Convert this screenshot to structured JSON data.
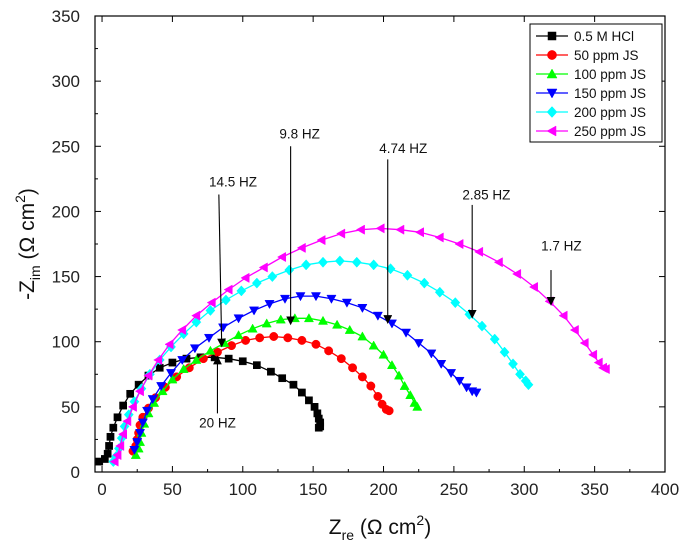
{
  "chart_data": {
    "type": "scatter",
    "title": "",
    "xlabel": "Z",
    "xlabel_sub": "re",
    "xlabel_unit": "(Ω cm",
    "xlabel_sup": "2",
    "xlabel_close": ")",
    "ylabel": "-Z",
    "ylabel_sub": "im",
    "ylabel_unit": "(Ω cm",
    "ylabel_sup": "2",
    "ylabel_close": ")",
    "xlim": [
      -5,
      400
    ],
    "ylim": [
      0,
      350
    ],
    "xticks": [
      0,
      50,
      100,
      150,
      200,
      250,
      300,
      350,
      400
    ],
    "yticks": [
      0,
      50,
      100,
      150,
      200,
      250,
      300,
      350
    ],
    "grid": false,
    "legend_position": "top-right",
    "series": [
      {
        "name": "0.5 M HCl",
        "color": "#000000",
        "marker": "square",
        "x": [
          -2,
          2,
          4,
          5,
          6,
          8,
          11,
          15,
          20,
          26,
          33,
          41,
          50,
          60,
          70,
          80,
          90,
          100,
          110,
          120,
          128,
          136,
          142,
          147,
          151,
          153,
          154,
          155,
          155,
          154
        ],
        "y": [
          8,
          10,
          14,
          20,
          27,
          34,
          42,
          51,
          60,
          67,
          74,
          80,
          84,
          87,
          88,
          88,
          87,
          85,
          82,
          77,
          72,
          67,
          61,
          55,
          50,
          45,
          41,
          38,
          35,
          34
        ]
      },
      {
        "name": "50 ppm JS",
        "color": "#ff0000",
        "marker": "circle",
        "x": [
          22,
          24,
          25,
          26,
          27,
          29,
          33,
          38,
          45,
          53,
          62,
          72,
          82,
          92,
          102,
          112,
          122,
          132,
          142,
          152,
          161,
          170,
          178,
          185,
          191,
          196,
          199,
          202,
          204
        ],
        "y": [
          16,
          20,
          25,
          30,
          36,
          42,
          49,
          57,
          65,
          73,
          80,
          87,
          92,
          97,
          101,
          103,
          104,
          103,
          101,
          98,
          93,
          87,
          80,
          73,
          66,
          58,
          52,
          48,
          47
        ]
      },
      {
        "name": "100 ppm JS",
        "color": "#00ff00",
        "marker": "triangle-up",
        "x": [
          24,
          26,
          27,
          28,
          30,
          33,
          37,
          43,
          50,
          58,
          67,
          77,
          87,
          97,
          107,
          117,
          127,
          137,
          147,
          157,
          167,
          176,
          185,
          193,
          200,
          206,
          211,
          215,
          219,
          222,
          224
        ],
        "y": [
          13,
          18,
          23,
          30,
          37,
          45,
          53,
          62,
          71,
          79,
          86,
          93,
          99,
          105,
          110,
          114,
          117,
          118,
          118,
          116,
          113,
          109,
          104,
          97,
          90,
          82,
          74,
          66,
          59,
          53,
          50
        ]
      },
      {
        "name": "150 ppm JS",
        "color": "#0000ff",
        "marker": "triangle-down",
        "x": [
          23,
          25,
          27,
          29,
          32,
          36,
          42,
          49,
          57,
          66,
          76,
          86,
          97,
          108,
          119,
          130,
          141,
          152,
          163,
          174,
          185,
          196,
          206,
          216,
          225,
          234,
          241,
          248,
          254,
          259,
          263,
          266
        ],
        "y": [
          17,
          23,
          30,
          38,
          47,
          56,
          66,
          76,
          86,
          95,
          103,
          111,
          118,
          124,
          129,
          133,
          135,
          135,
          133,
          130,
          126,
          120,
          114,
          107,
          99,
          91,
          83,
          76,
          70,
          65,
          62,
          61
        ]
      },
      {
        "name": "200 ppm JS",
        "color": "#00ffff",
        "marker": "diamond",
        "x": [
          8,
          10,
          12,
          14,
          16,
          19,
          23,
          28,
          34,
          41,
          49,
          58,
          67,
          77,
          88,
          99,
          110,
          121,
          133,
          145,
          157,
          169,
          181,
          193,
          205,
          217,
          229,
          240,
          251,
          261,
          270,
          279,
          286,
          292,
          297,
          301,
          303
        ],
        "y": [
          8,
          12,
          18,
          26,
          35,
          44,
          54,
          64,
          75,
          86,
          96,
          106,
          115,
          124,
          132,
          139,
          145,
          150,
          155,
          159,
          161,
          162,
          161,
          159,
          156,
          151,
          145,
          138,
          130,
          121,
          112,
          102,
          92,
          83,
          75,
          70,
          67
        ]
      },
      {
        "name": "250 ppm JS",
        "color": "#ff00ff",
        "marker": "triangle-left",
        "x": [
          9,
          11,
          13,
          15,
          18,
          22,
          27,
          33,
          40,
          48,
          57,
          67,
          78,
          90,
          102,
          115,
          128,
          142,
          156,
          170,
          184,
          198,
          212,
          226,
          240,
          254,
          268,
          282,
          295,
          307,
          318,
          328,
          336,
          343,
          349,
          353,
          356,
          358
        ],
        "y": [
          8,
          13,
          20,
          29,
          39,
          50,
          62,
          74,
          86,
          98,
          109,
          120,
          130,
          140,
          149,
          157,
          165,
          172,
          178,
          183,
          186,
          187,
          186,
          184,
          180,
          175,
          169,
          161,
          152,
          142,
          131,
          120,
          109,
          99,
          90,
          84,
          80,
          79
        ]
      }
    ],
    "annotations": [
      {
        "text": "14.5 HZ",
        "arrow_from": [
          83,
          213
        ],
        "arrow_to": [
          85,
          99
        ],
        "text_pos": [
          76,
          219
        ]
      },
      {
        "text": "9.8 HZ",
        "arrow_from": [
          134,
          250
        ],
        "arrow_to": [
          134,
          116
        ],
        "text_pos": [
          126,
          256
        ]
      },
      {
        "text": "4.74 HZ",
        "arrow_from": [
          203,
          240
        ],
        "arrow_to": [
          203,
          117
        ],
        "text_pos": [
          197,
          245
        ]
      },
      {
        "text": "2.85 HZ",
        "arrow_from": [
          263,
          205
        ],
        "arrow_to": [
          263,
          121
        ],
        "text_pos": [
          256,
          209
        ]
      },
      {
        "text": "1.7 HZ",
        "arrow_from": [
          319,
          155
        ],
        "arrow_to": [
          319,
          131
        ],
        "text_pos": [
          312,
          170
        ]
      },
      {
        "text": "20 HZ",
        "arrow_from": [
          82,
          45
        ],
        "arrow_to": [
          82,
          86
        ],
        "text_pos": [
          69,
          34
        ]
      }
    ]
  }
}
